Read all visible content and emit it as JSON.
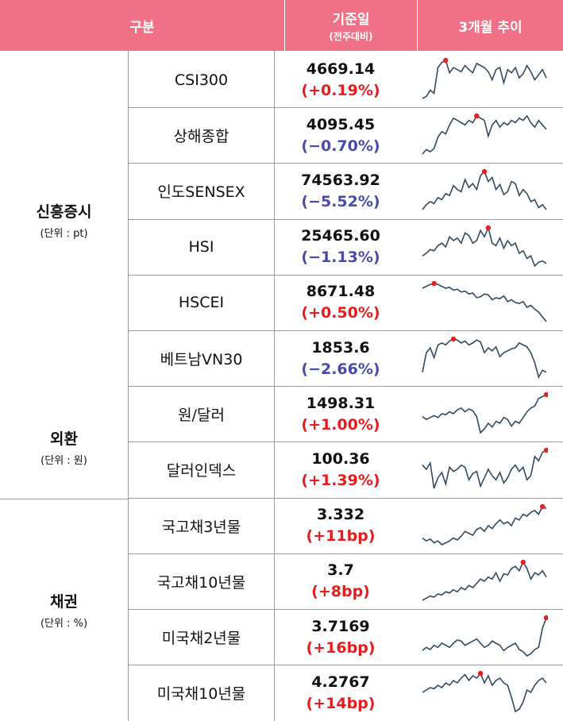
{
  "header": {
    "col_category": "구분",
    "col_value": "기준일",
    "col_value_sub": "(전주대비)",
    "col_trend": "3개월 추이"
  },
  "colors": {
    "header_bg": "#f07085",
    "up": "#e81c1c",
    "down": "#4a4aa8",
    "line": "#34495e",
    "marker": "#e82020"
  },
  "categories": [
    {
      "name": "신흥증시",
      "unit": "(단위 : pt)"
    },
    {
      "name": "외환",
      "unit": "(단위 : 원)"
    },
    {
      "name": "채권",
      "unit": "(단위 : %)"
    }
  ],
  "rows": [
    {
      "label": "CSI300",
      "value": "4669.14",
      "change": "(+0.19%)",
      "direction": "up",
      "trend": [
        10,
        12,
        18,
        15,
        40,
        45,
        47,
        35,
        40,
        38,
        36,
        42,
        38,
        35,
        44,
        42,
        40,
        36,
        28,
        38,
        40,
        25,
        38,
        35,
        40,
        30,
        34,
        42,
        36,
        28,
        33,
        38,
        30
      ]
    },
    {
      "label": "상해종합",
      "value": "4095.45",
      "change": "(−0.70%)",
      "direction": "down",
      "trend": [
        10,
        14,
        12,
        15,
        25,
        30,
        28,
        36,
        42,
        40,
        38,
        36,
        40,
        38,
        44,
        42,
        40,
        26,
        36,
        40,
        34,
        38,
        36,
        40,
        38,
        42,
        40,
        44,
        38,
        34,
        40,
        36,
        32
      ]
    },
    {
      "label": "인도SENSEX",
      "value": "74563.92",
      "change": "(−5.52%)",
      "direction": "down",
      "trend": [
        10,
        15,
        18,
        16,
        22,
        20,
        26,
        24,
        34,
        30,
        28,
        40,
        32,
        36,
        30,
        44,
        48,
        38,
        42,
        30,
        35,
        25,
        28,
        38,
        36,
        24,
        30,
        26,
        18,
        20,
        12,
        15,
        10
      ]
    },
    {
      "label": "HSI",
      "value": "25465.60",
      "change": "(−1.13%)",
      "direction": "down",
      "trend": [
        20,
        22,
        25,
        24,
        28,
        30,
        27,
        35,
        32,
        34,
        30,
        38,
        36,
        30,
        32,
        40,
        35,
        42,
        30,
        28,
        34,
        26,
        32,
        28,
        30,
        22,
        24,
        18,
        20,
        12,
        15,
        16,
        14
      ]
    },
    {
      "label": "HSCEI",
      "value": "8671.48",
      "change": "(+0.50%)",
      "direction": "up",
      "trend": [
        40,
        42,
        44,
        45,
        44,
        42,
        40,
        41,
        38,
        39,
        36,
        37,
        34,
        35,
        30,
        31,
        34,
        33,
        28,
        30,
        29,
        32,
        26,
        28,
        25,
        24,
        26,
        20,
        22,
        18,
        15,
        10,
        5
      ]
    },
    {
      "label": "베트남VN30",
      "value": "1853.6",
      "change": "(−2.66%)",
      "direction": "down",
      "trend": [
        10,
        30,
        35,
        25,
        38,
        40,
        38,
        42,
        44,
        43,
        40,
        42,
        38,
        40,
        43,
        41,
        30,
        35,
        32,
        36,
        26,
        30,
        32,
        34,
        35,
        40,
        38,
        36,
        30,
        20,
        5,
        12,
        10
      ]
    },
    {
      "label": "원/달러",
      "value": "1498.31",
      "change": "(+1.00%)",
      "direction": "up",
      "trend": [
        25,
        22,
        24,
        26,
        24,
        28,
        27,
        30,
        28,
        32,
        34,
        30,
        33,
        31,
        25,
        8,
        12,
        18,
        14,
        20,
        18,
        24,
        22,
        15,
        20,
        18,
        24,
        30,
        34,
        36,
        44,
        46,
        48
      ]
    },
    {
      "label": "달러인덱스",
      "value": "100.36",
      "change": "(+1.39%)",
      "direction": "up",
      "trend": [
        32,
        28,
        34,
        10,
        20,
        25,
        14,
        30,
        26,
        28,
        32,
        30,
        18,
        24,
        26,
        12,
        20,
        28,
        22,
        18,
        25,
        15,
        20,
        28,
        32,
        26,
        30,
        18,
        22,
        40,
        36,
        44,
        46
      ]
    },
    {
      "label": "국고채3년물",
      "value": "3.332",
      "change": "(+11bp)",
      "direction": "up",
      "trend": [
        15,
        12,
        14,
        10,
        12,
        8,
        10,
        12,
        15,
        13,
        17,
        22,
        20,
        18,
        24,
        26,
        22,
        28,
        25,
        30,
        34,
        30,
        32,
        28,
        36,
        34,
        40,
        38,
        42,
        44,
        40,
        48,
        46
      ]
    },
    {
      "label": "국고채10년물",
      "value": "3.7",
      "change": "(+8bp)",
      "direction": "up",
      "trend": [
        10,
        12,
        14,
        13,
        16,
        15,
        18,
        17,
        20,
        18,
        22,
        20,
        24,
        22,
        26,
        30,
        28,
        32,
        30,
        36,
        28,
        35,
        34,
        40,
        42,
        38,
        46,
        40,
        30,
        36,
        34,
        38,
        32
      ]
    },
    {
      "label": "미국채2년물",
      "value": "3.7169",
      "change": "(+16bp)",
      "direction": "up",
      "trend": [
        15,
        18,
        16,
        20,
        18,
        22,
        20,
        18,
        22,
        25,
        24,
        20,
        22,
        24,
        26,
        22,
        18,
        20,
        24,
        22,
        20,
        15,
        18,
        20,
        22,
        16,
        14,
        10,
        12,
        16,
        18,
        36,
        46
      ]
    },
    {
      "label": "미국채10년물",
      "value": "4.2767",
      "change": "(+14bp)",
      "direction": "up",
      "trend": [
        30,
        32,
        34,
        33,
        36,
        34,
        38,
        36,
        40,
        38,
        42,
        45,
        40,
        44,
        42,
        46,
        38,
        44,
        36,
        40,
        42,
        38,
        36,
        26,
        14,
        16,
        22,
        32,
        30,
        36,
        40,
        42,
        38
      ]
    }
  ]
}
